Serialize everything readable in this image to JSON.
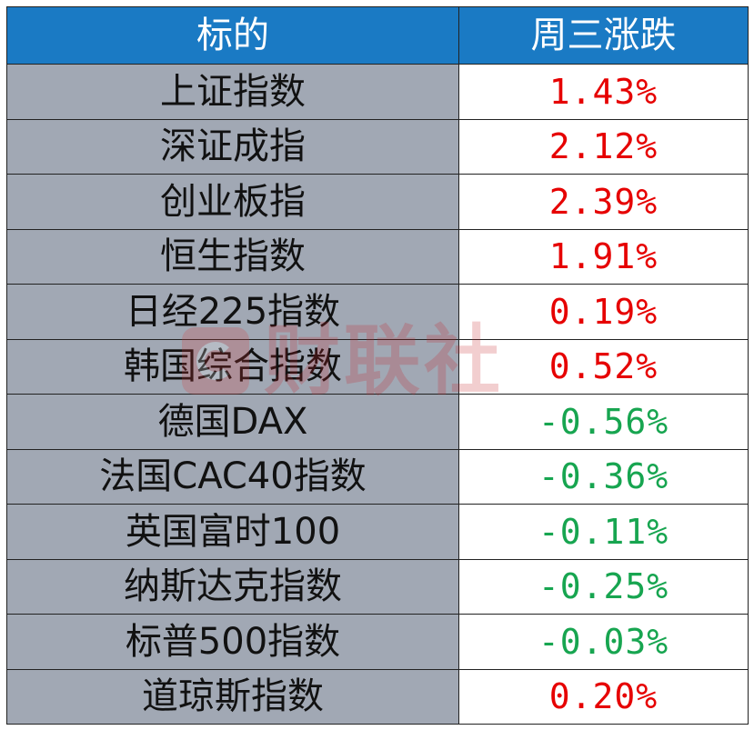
{
  "table": {
    "header": {
      "col1": "标的",
      "col2": "周三涨跌"
    },
    "rows": [
      {
        "name": "上证指数",
        "change": "1.43%",
        "direction": "up"
      },
      {
        "name": "深证成指",
        "change": "2.12%",
        "direction": "up"
      },
      {
        "name": "创业板指",
        "change": "2.39%",
        "direction": "up"
      },
      {
        "name": "恒生指数",
        "change": "1.91%",
        "direction": "up"
      },
      {
        "name": "日经225指数",
        "change": "0.19%",
        "direction": "up"
      },
      {
        "name": "韩国综合指数",
        "change": "0.52%",
        "direction": "up"
      },
      {
        "name": "德国DAX",
        "change": "-0.56%",
        "direction": "down"
      },
      {
        "name": "法国CAC40指数",
        "change": "-0.36%",
        "direction": "down"
      },
      {
        "name": "英国富时100",
        "change": "-0.11%",
        "direction": "down"
      },
      {
        "name": "纳斯达克指数",
        "change": "-0.25%",
        "direction": "down"
      },
      {
        "name": "标普500指数",
        "change": "-0.03%",
        "direction": "down"
      },
      {
        "name": "道琼斯指数",
        "change": "0.20%",
        "direction": "up"
      }
    ]
  },
  "watermark": {
    "text": "财联社",
    "icon": "cls-logo-icon"
  },
  "colors": {
    "header_bg": "#1a7ac4",
    "name_bg": "#a1a8b4",
    "up": "#e60000",
    "down": "#17a550"
  }
}
